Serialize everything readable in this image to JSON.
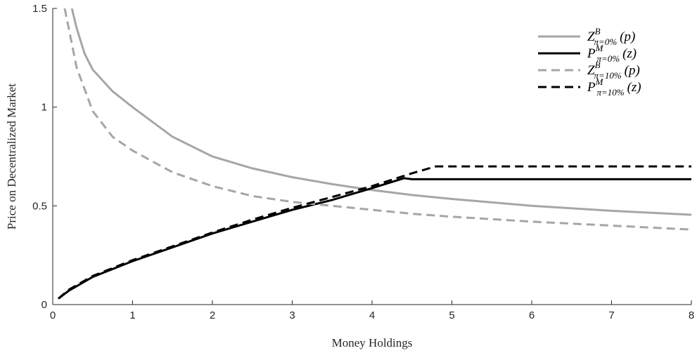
{
  "chart_data": {
    "type": "line",
    "xlabel": "Money Holdings",
    "ylabel": "Price on Decentralized Market",
    "xlim": [
      0,
      8
    ],
    "ylim": [
      0,
      1.5
    ],
    "xticks": [
      0,
      1,
      2,
      3,
      4,
      5,
      6,
      7,
      8
    ],
    "yticks": [
      0,
      0.5,
      1,
      1.5
    ],
    "legend": "upper right",
    "series": [
      {
        "name": {
          "base": "Z",
          "sup": "B",
          "sub": "π=0%",
          "arg": "(p)"
        },
        "color": "#a6a6a6",
        "linestyle": "solid",
        "x": [
          0.24,
          0.3,
          0.4,
          0.5,
          0.75,
          1,
          1.5,
          2,
          2.5,
          3,
          3.5,
          4,
          4.5,
          5,
          6,
          7,
          8
        ],
        "y": [
          1.5,
          1.4,
          1.27,
          1.19,
          1.08,
          1.0,
          0.85,
          0.75,
          0.69,
          0.645,
          0.61,
          0.58,
          0.555,
          0.535,
          0.5,
          0.475,
          0.455
        ]
      },
      {
        "name": {
          "base": "P",
          "sup": "M",
          "sub": "π=0%",
          "arg": "(z)"
        },
        "color": "#000000",
        "linestyle": "solid",
        "x": [
          0.07,
          0.2,
          0.5,
          1,
          1.5,
          2,
          2.5,
          3,
          3.5,
          4,
          4.4,
          4.5,
          8
        ],
        "y": [
          0.03,
          0.07,
          0.14,
          0.22,
          0.29,
          0.36,
          0.42,
          0.48,
          0.53,
          0.59,
          0.64,
          0.635,
          0.635
        ]
      },
      {
        "name": {
          "base": "Z",
          "sup": "B",
          "sub": "π=10%",
          "arg": "(p)"
        },
        "color": "#a6a6a6",
        "linestyle": "dashed",
        "x": [
          0.15,
          0.2,
          0.3,
          0.5,
          0.75,
          1,
          1.5,
          2,
          2.5,
          3,
          3.5,
          4,
          4.5,
          5,
          6,
          7,
          8
        ],
        "y": [
          1.5,
          1.4,
          1.2,
          0.98,
          0.85,
          0.78,
          0.67,
          0.6,
          0.55,
          0.52,
          0.5,
          0.48,
          0.46,
          0.445,
          0.42,
          0.4,
          0.38
        ]
      },
      {
        "name": {
          "base": "P",
          "sup": "M",
          "sub": "π=10%",
          "arg": "(z)"
        },
        "color": "#000000",
        "linestyle": "dashed",
        "x": [
          0.07,
          0.2,
          0.5,
          1,
          1.5,
          2,
          2.5,
          3,
          3.5,
          4,
          4.5,
          4.8,
          4.9,
          8
        ],
        "y": [
          0.03,
          0.075,
          0.145,
          0.225,
          0.295,
          0.365,
          0.43,
          0.49,
          0.545,
          0.6,
          0.665,
          0.7,
          0.7,
          0.7
        ]
      }
    ]
  }
}
